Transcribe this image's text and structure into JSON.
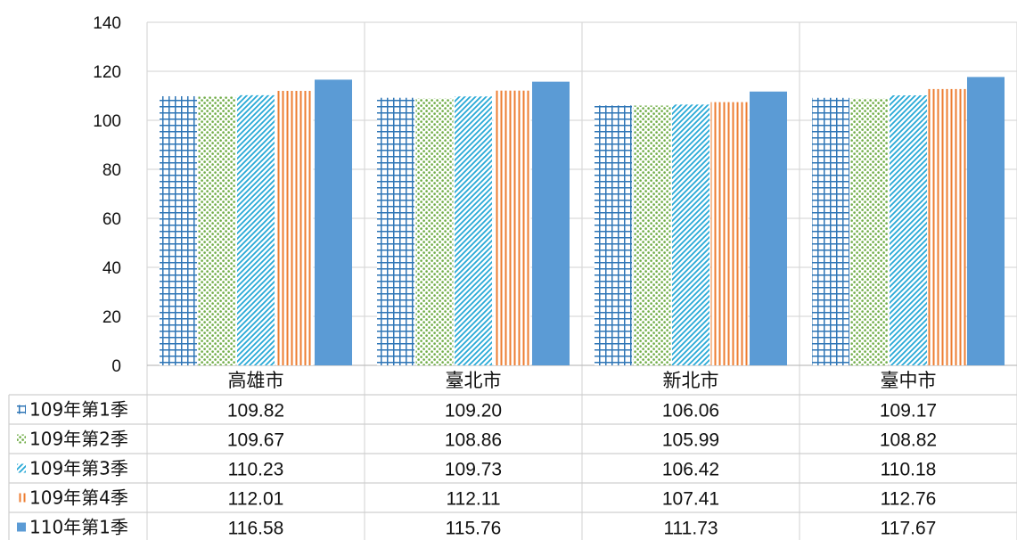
{
  "chart_data": {
    "type": "bar",
    "categories": [
      "高雄市",
      "臺北市",
      "新北市",
      "臺中市"
    ],
    "series": [
      {
        "name": "109年第1季",
        "values": [
          109.82,
          109.2,
          106.06,
          109.17
        ],
        "color": "#2E75B6",
        "pattern": "grid"
      },
      {
        "name": "109年第2季",
        "values": [
          109.67,
          108.86,
          105.99,
          108.82
        ],
        "color": "#70AD47",
        "pattern": "dots"
      },
      {
        "name": "109年第3季",
        "values": [
          110.23,
          109.73,
          106.42,
          110.18
        ],
        "color": "#28A9D6",
        "pattern": "diagonal"
      },
      {
        "name": "109年第4季",
        "values": [
          112.01,
          112.11,
          107.41,
          112.76
        ],
        "color": "#ED7D31",
        "pattern": "vertical"
      },
      {
        "name": "110年第1季",
        "values": [
          116.58,
          115.76,
          111.73,
          117.67
        ],
        "color": "#5B9BD5",
        "pattern": "solid"
      }
    ],
    "table_values": [
      [
        "109.82",
        "109.20",
        "106.06",
        "109.17"
      ],
      [
        "109.67",
        "108.86",
        "105.99",
        "108.82"
      ],
      [
        "110.23",
        "109.73",
        "106.42",
        "110.18"
      ],
      [
        "112.01",
        "112.11",
        "107.41",
        "112.76"
      ],
      [
        "116.58",
        "115.76",
        "111.73",
        "117.67"
      ]
    ],
    "ylim": [
      0,
      140
    ],
    "yticks": [
      0,
      20,
      40,
      60,
      80,
      100,
      120,
      140
    ],
    "grid": true,
    "legend": "data-table",
    "title": "",
    "xlabel": "",
    "ylabel": ""
  }
}
